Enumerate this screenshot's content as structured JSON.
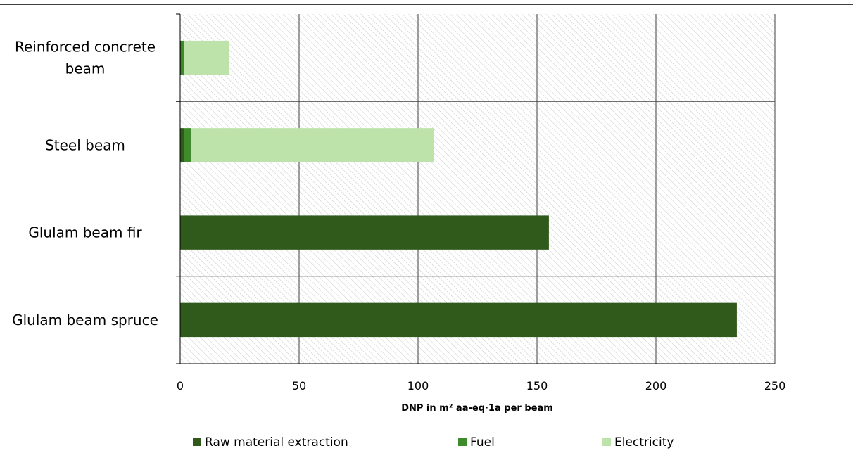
{
  "chart_data": {
    "type": "bar",
    "orientation": "horizontal",
    "stacked": true,
    "title": "",
    "xlabel": "DNP in m² aa-eq·1a per beam",
    "ylabel": "",
    "xlim": [
      0,
      250
    ],
    "xticks": [
      0,
      50,
      100,
      150,
      200,
      250
    ],
    "grid": true,
    "legend_position": "bottom",
    "categories": [
      "Reinforced concrete beam",
      "Steel beam",
      "Glulam beam fir",
      "Glulam beam spruce"
    ],
    "category_lines": [
      [
        "Reinforced concrete",
        "beam"
      ],
      [
        "Steel beam"
      ],
      [
        "Glulam beam fir"
      ],
      [
        "Glulam beam spruce"
      ]
    ],
    "series": [
      {
        "name": "Raw material extraction",
        "color": "#2f5a1b",
        "values": [
          0.5,
          1.5,
          155,
          234
        ]
      },
      {
        "name": "Fuel",
        "color": "#3f8a2a",
        "values": [
          1.0,
          3.0,
          0,
          0
        ]
      },
      {
        "name": "Electricity",
        "color": "#bde3aa",
        "values": [
          19,
          102,
          0,
          0
        ]
      }
    ]
  }
}
